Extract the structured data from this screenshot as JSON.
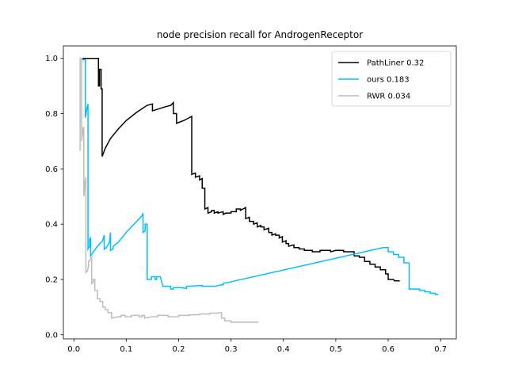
{
  "chart_data": {
    "type": "line",
    "title": "node precision recall for AndrogenReceptor",
    "xlabel": "",
    "ylabel": "",
    "xlim": [
      -0.02,
      0.73
    ],
    "ylim": [
      -0.015,
      1.045
    ],
    "xticks": [
      0.0,
      0.1,
      0.2,
      0.3,
      0.4,
      0.5,
      0.6,
      0.7
    ],
    "xtick_labels": [
      "0.0",
      "0.1",
      "0.2",
      "0.3",
      "0.4",
      "0.5",
      "0.6",
      "0.7"
    ],
    "yticks": [
      0.0,
      0.2,
      0.4,
      0.6,
      0.8,
      1.0
    ],
    "ytick_labels": [
      "0.0",
      "0.2",
      "0.4",
      "0.6",
      "0.8",
      "1.0"
    ],
    "grid": false,
    "legend_position": "top-right",
    "series": [
      {
        "name": "PathLiner 0.32",
        "color": "#000000",
        "points": [
          [
            0.012,
            1.0
          ],
          [
            0.047,
            1.0
          ],
          [
            0.047,
            0.9
          ],
          [
            0.049,
            0.9
          ],
          [
            0.049,
            0.96
          ],
          [
            0.052,
            0.96
          ],
          [
            0.052,
            0.89
          ],
          [
            0.054,
            0.89
          ],
          [
            0.054,
            0.645
          ],
          [
            0.06,
            0.675
          ],
          [
            0.07,
            0.71
          ],
          [
            0.085,
            0.745
          ],
          [
            0.1,
            0.775
          ],
          [
            0.12,
            0.805
          ],
          [
            0.14,
            0.83
          ],
          [
            0.15,
            0.835
          ],
          [
            0.15,
            0.81
          ],
          [
            0.175,
            0.825
          ],
          [
            0.185,
            0.83
          ],
          [
            0.19,
            0.84
          ],
          [
            0.19,
            0.8
          ],
          [
            0.196,
            0.8
          ],
          [
            0.196,
            0.765
          ],
          [
            0.21,
            0.775
          ],
          [
            0.22,
            0.785
          ],
          [
            0.225,
            0.79
          ],
          [
            0.225,
            0.58
          ],
          [
            0.232,
            0.585
          ],
          [
            0.232,
            0.57
          ],
          [
            0.24,
            0.575
          ],
          [
            0.24,
            0.56
          ],
          [
            0.245,
            0.565
          ],
          [
            0.245,
            0.53
          ],
          [
            0.25,
            0.53
          ],
          [
            0.25,
            0.455
          ],
          [
            0.256,
            0.46
          ],
          [
            0.256,
            0.44
          ],
          [
            0.263,
            0.445
          ],
          [
            0.263,
            0.45
          ],
          [
            0.268,
            0.45
          ],
          [
            0.268,
            0.44
          ],
          [
            0.275,
            0.445
          ],
          [
            0.275,
            0.44
          ],
          [
            0.285,
            0.445
          ],
          [
            0.285,
            0.435
          ],
          [
            0.29,
            0.44
          ],
          [
            0.3,
            0.44
          ],
          [
            0.3,
            0.445
          ],
          [
            0.31,
            0.445
          ],
          [
            0.31,
            0.455
          ],
          [
            0.318,
            0.455
          ],
          [
            0.318,
            0.45
          ],
          [
            0.328,
            0.46
          ],
          [
            0.328,
            0.42
          ],
          [
            0.335,
            0.425
          ],
          [
            0.335,
            0.41
          ],
          [
            0.343,
            0.41
          ],
          [
            0.343,
            0.4
          ],
          [
            0.35,
            0.405
          ],
          [
            0.35,
            0.39
          ],
          [
            0.357,
            0.395
          ],
          [
            0.357,
            0.39
          ],
          [
            0.363,
            0.39
          ],
          [
            0.363,
            0.38
          ],
          [
            0.372,
            0.385
          ],
          [
            0.372,
            0.37
          ],
          [
            0.378,
            0.37
          ],
          [
            0.378,
            0.36
          ],
          [
            0.385,
            0.365
          ],
          [
            0.385,
            0.36
          ],
          [
            0.392,
            0.36
          ],
          [
            0.392,
            0.35
          ],
          [
            0.398,
            0.355
          ],
          [
            0.398,
            0.335
          ],
          [
            0.405,
            0.34
          ],
          [
            0.405,
            0.33
          ],
          [
            0.41,
            0.33
          ],
          [
            0.41,
            0.32
          ],
          [
            0.42,
            0.325
          ],
          [
            0.42,
            0.315
          ],
          [
            0.43,
            0.315
          ],
          [
            0.43,
            0.31
          ],
          [
            0.44,
            0.31
          ],
          [
            0.44,
            0.305
          ],
          [
            0.455,
            0.305
          ],
          [
            0.455,
            0.3
          ],
          [
            0.47,
            0.3
          ],
          [
            0.47,
            0.305
          ],
          [
            0.49,
            0.305
          ],
          [
            0.49,
            0.3
          ],
          [
            0.5,
            0.305
          ],
          [
            0.515,
            0.305
          ],
          [
            0.515,
            0.3
          ],
          [
            0.535,
            0.3
          ],
          [
            0.535,
            0.285
          ],
          [
            0.545,
            0.285
          ],
          [
            0.545,
            0.28
          ],
          [
            0.555,
            0.28
          ],
          [
            0.555,
            0.265
          ],
          [
            0.565,
            0.265
          ],
          [
            0.565,
            0.255
          ],
          [
            0.575,
            0.255
          ],
          [
            0.575,
            0.245
          ],
          [
            0.585,
            0.245
          ],
          [
            0.585,
            0.235
          ],
          [
            0.595,
            0.235
          ],
          [
            0.595,
            0.22
          ],
          [
            0.6,
            0.22
          ],
          [
            0.6,
            0.2
          ],
          [
            0.61,
            0.2
          ],
          [
            0.612,
            0.195
          ],
          [
            0.622,
            0.195
          ]
        ]
      },
      {
        "name": "ours 0.183",
        "color": "#00bfff",
        "points": [
          [
            0.012,
            1.0
          ],
          [
            0.016,
            1.0
          ],
          [
            0.016,
            0.995
          ],
          [
            0.022,
            0.995
          ],
          [
            0.022,
            0.785
          ],
          [
            0.025,
            0.82
          ],
          [
            0.027,
            0.835
          ],
          [
            0.027,
            0.31
          ],
          [
            0.03,
            0.32
          ],
          [
            0.03,
            0.345
          ],
          [
            0.032,
            0.35
          ],
          [
            0.032,
            0.285
          ],
          [
            0.045,
            0.32
          ],
          [
            0.055,
            0.34
          ],
          [
            0.058,
            0.36
          ],
          [
            0.058,
            0.31
          ],
          [
            0.062,
            0.315
          ],
          [
            0.068,
            0.335
          ],
          [
            0.07,
            0.37
          ],
          [
            0.07,
            0.305
          ],
          [
            0.075,
            0.31
          ],
          [
            0.075,
            0.32
          ],
          [
            0.085,
            0.335
          ],
          [
            0.1,
            0.37
          ],
          [
            0.115,
            0.4
          ],
          [
            0.13,
            0.43
          ],
          [
            0.132,
            0.44
          ],
          [
            0.132,
            0.37
          ],
          [
            0.136,
            0.375
          ],
          [
            0.136,
            0.4
          ],
          [
            0.14,
            0.4
          ],
          [
            0.14,
            0.2
          ],
          [
            0.148,
            0.2
          ],
          [
            0.148,
            0.21
          ],
          [
            0.155,
            0.21
          ],
          [
            0.155,
            0.2
          ],
          [
            0.158,
            0.2
          ],
          [
            0.158,
            0.21
          ],
          [
            0.165,
            0.21
          ],
          [
            0.17,
            0.175
          ],
          [
            0.185,
            0.175
          ],
          [
            0.185,
            0.165
          ],
          [
            0.19,
            0.165
          ],
          [
            0.19,
            0.17
          ],
          [
            0.205,
            0.17
          ],
          [
            0.212,
            0.168
          ],
          [
            0.215,
            0.168
          ],
          [
            0.215,
            0.175
          ],
          [
            0.245,
            0.178
          ],
          [
            0.245,
            0.175
          ],
          [
            0.27,
            0.175
          ],
          [
            0.28,
            0.18
          ],
          [
            0.285,
            0.18
          ],
          [
            0.285,
            0.185
          ],
          [
            0.59,
            0.315
          ],
          [
            0.6,
            0.315
          ],
          [
            0.6,
            0.3
          ],
          [
            0.61,
            0.3
          ],
          [
            0.61,
            0.29
          ],
          [
            0.62,
            0.29
          ],
          [
            0.62,
            0.28
          ],
          [
            0.63,
            0.28
          ],
          [
            0.63,
            0.26
          ],
          [
            0.64,
            0.26
          ],
          [
            0.64,
            0.165
          ],
          [
            0.66,
            0.165
          ],
          [
            0.66,
            0.16
          ],
          [
            0.67,
            0.16
          ],
          [
            0.67,
            0.155
          ],
          [
            0.68,
            0.155
          ],
          [
            0.68,
            0.15
          ],
          [
            0.69,
            0.15
          ],
          [
            0.69,
            0.145
          ],
          [
            0.696,
            0.145
          ]
        ]
      },
      {
        "name": "RWR 0.034",
        "color": "#bdbdbd",
        "points": [
          [
            0.012,
            0.665
          ],
          [
            0.012,
            1.0
          ],
          [
            0.015,
            1.0
          ],
          [
            0.015,
            0.7
          ],
          [
            0.018,
            0.75
          ],
          [
            0.019,
            0.75
          ],
          [
            0.019,
            0.5
          ],
          [
            0.021,
            0.55
          ],
          [
            0.023,
            0.57
          ],
          [
            0.023,
            0.225
          ],
          [
            0.026,
            0.23
          ],
          [
            0.028,
            0.25
          ],
          [
            0.028,
            0.265
          ],
          [
            0.03,
            0.265
          ],
          [
            0.03,
            0.27
          ],
          [
            0.034,
            0.28
          ],
          [
            0.034,
            0.185
          ],
          [
            0.037,
            0.19
          ],
          [
            0.037,
            0.2
          ],
          [
            0.04,
            0.2
          ],
          [
            0.04,
            0.16
          ],
          [
            0.045,
            0.16
          ],
          [
            0.045,
            0.13
          ],
          [
            0.05,
            0.13
          ],
          [
            0.05,
            0.12
          ],
          [
            0.055,
            0.12
          ],
          [
            0.055,
            0.1
          ],
          [
            0.06,
            0.1
          ],
          [
            0.06,
            0.09
          ],
          [
            0.065,
            0.09
          ],
          [
            0.065,
            0.08
          ],
          [
            0.072,
            0.08
          ],
          [
            0.072,
            0.06
          ],
          [
            0.085,
            0.065
          ],
          [
            0.09,
            0.065
          ],
          [
            0.09,
            0.07
          ],
          [
            0.098,
            0.07
          ],
          [
            0.098,
            0.065
          ],
          [
            0.11,
            0.065
          ],
          [
            0.11,
            0.07
          ],
          [
            0.125,
            0.07
          ],
          [
            0.125,
            0.065
          ],
          [
            0.13,
            0.065
          ],
          [
            0.13,
            0.07
          ],
          [
            0.135,
            0.07
          ],
          [
            0.135,
            0.06
          ],
          [
            0.15,
            0.065
          ],
          [
            0.16,
            0.065
          ],
          [
            0.16,
            0.07
          ],
          [
            0.18,
            0.07
          ],
          [
            0.18,
            0.065
          ],
          [
            0.2,
            0.065
          ],
          [
            0.2,
            0.07
          ],
          [
            0.22,
            0.07
          ],
          [
            0.22,
            0.072
          ],
          [
            0.24,
            0.072
          ],
          [
            0.24,
            0.075
          ],
          [
            0.26,
            0.075
          ],
          [
            0.26,
            0.078
          ],
          [
            0.275,
            0.078
          ],
          [
            0.278,
            0.08
          ],
          [
            0.282,
            0.08
          ],
          [
            0.282,
            0.06
          ],
          [
            0.288,
            0.06
          ],
          [
            0.288,
            0.05
          ],
          [
            0.3,
            0.05
          ],
          [
            0.3,
            0.045
          ],
          [
            0.352,
            0.045
          ]
        ]
      }
    ]
  }
}
